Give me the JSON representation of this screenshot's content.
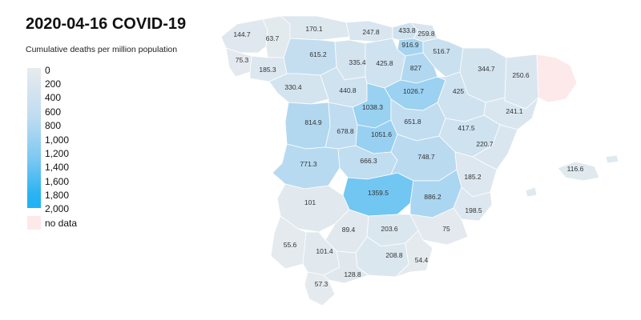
{
  "title": "2020-04-16 COVID-19",
  "subtitle": "Cumulative deaths per million population",
  "legend": {
    "ticks": [
      "0",
      "200",
      "400",
      "600",
      "800",
      "1,000",
      "1,200",
      "1,400",
      "1,600",
      "1,800",
      "2,000"
    ],
    "no_data_label": "no data",
    "color_min": "#e7ebee",
    "color_max": "#1fb1f5",
    "no_data_color": "#fde9ea"
  },
  "provinces": [
    {
      "name": "A Coruña",
      "value": 144.7
    },
    {
      "name": "Lugo",
      "value": 63.7
    },
    {
      "name": "Asturias",
      "value": 170.1
    },
    {
      "name": "Cantabria",
      "value": 247.8
    },
    {
      "name": "Bizkaia",
      "value": 433.8
    },
    {
      "name": "Gipuzkoa",
      "value": 259.8
    },
    {
      "name": "Álava",
      "value": 916.9
    },
    {
      "name": "Navarra",
      "value": 516.7
    },
    {
      "name": "Pontevedra",
      "value": 75.3
    },
    {
      "name": "Ourense",
      "value": 185.3
    },
    {
      "name": "León",
      "value": 615.2
    },
    {
      "name": "Palencia",
      "value": 335.4
    },
    {
      "name": "Burgos",
      "value": 425.8
    },
    {
      "name": "La Rioja",
      "value": 827
    },
    {
      "name": "Huesca",
      "value": 344.7
    },
    {
      "name": "Lleida",
      "value": 250.6
    },
    {
      "name": "Girona",
      "value": null
    },
    {
      "name": "Zamora",
      "value": 330.4
    },
    {
      "name": "Valladolid",
      "value": 440.8
    },
    {
      "name": "Soria",
      "value": 1026.7
    },
    {
      "name": "Zaragoza",
      "value": 425
    },
    {
      "name": "Tarragona",
      "value": 241.1
    },
    {
      "name": "Segovia",
      "value": 1038.3
    },
    {
      "name": "Salamanca",
      "value": 814.9
    },
    {
      "name": "Ávila",
      "value": 678.8
    },
    {
      "name": "Madrid",
      "value": 1051.6
    },
    {
      "name": "Guadalajara",
      "value": 651.8
    },
    {
      "name": "Teruel",
      "value": 417.5
    },
    {
      "name": "Castellón",
      "value": 220.7
    },
    {
      "name": "Islas Baleares",
      "value": 116.6
    },
    {
      "name": "Cáceres",
      "value": 771.3
    },
    {
      "name": "Toledo",
      "value": 666.3
    },
    {
      "name": "Cuenca",
      "value": 748.7
    },
    {
      "name": "Valencia",
      "value": 185.2
    },
    {
      "name": "Ciudad Real",
      "value": 1359.5
    },
    {
      "name": "Albacete",
      "value": 886.2
    },
    {
      "name": "Alicante",
      "value": 198.5
    },
    {
      "name": "Badajoz",
      "value": 101
    },
    {
      "name": "Córdoba",
      "value": 89.4
    },
    {
      "name": "Jaén",
      "value": 203.6
    },
    {
      "name": "Murcia",
      "value": 75
    },
    {
      "name": "Huelva",
      "value": 55.6
    },
    {
      "name": "Sevilla",
      "value": 101.4
    },
    {
      "name": "Granada",
      "value": 208.8
    },
    {
      "name": "Almería",
      "value": 54.4
    },
    {
      "name": "Málaga",
      "value": 128.8
    },
    {
      "name": "Cádiz",
      "value": 57.3
    }
  ]
}
